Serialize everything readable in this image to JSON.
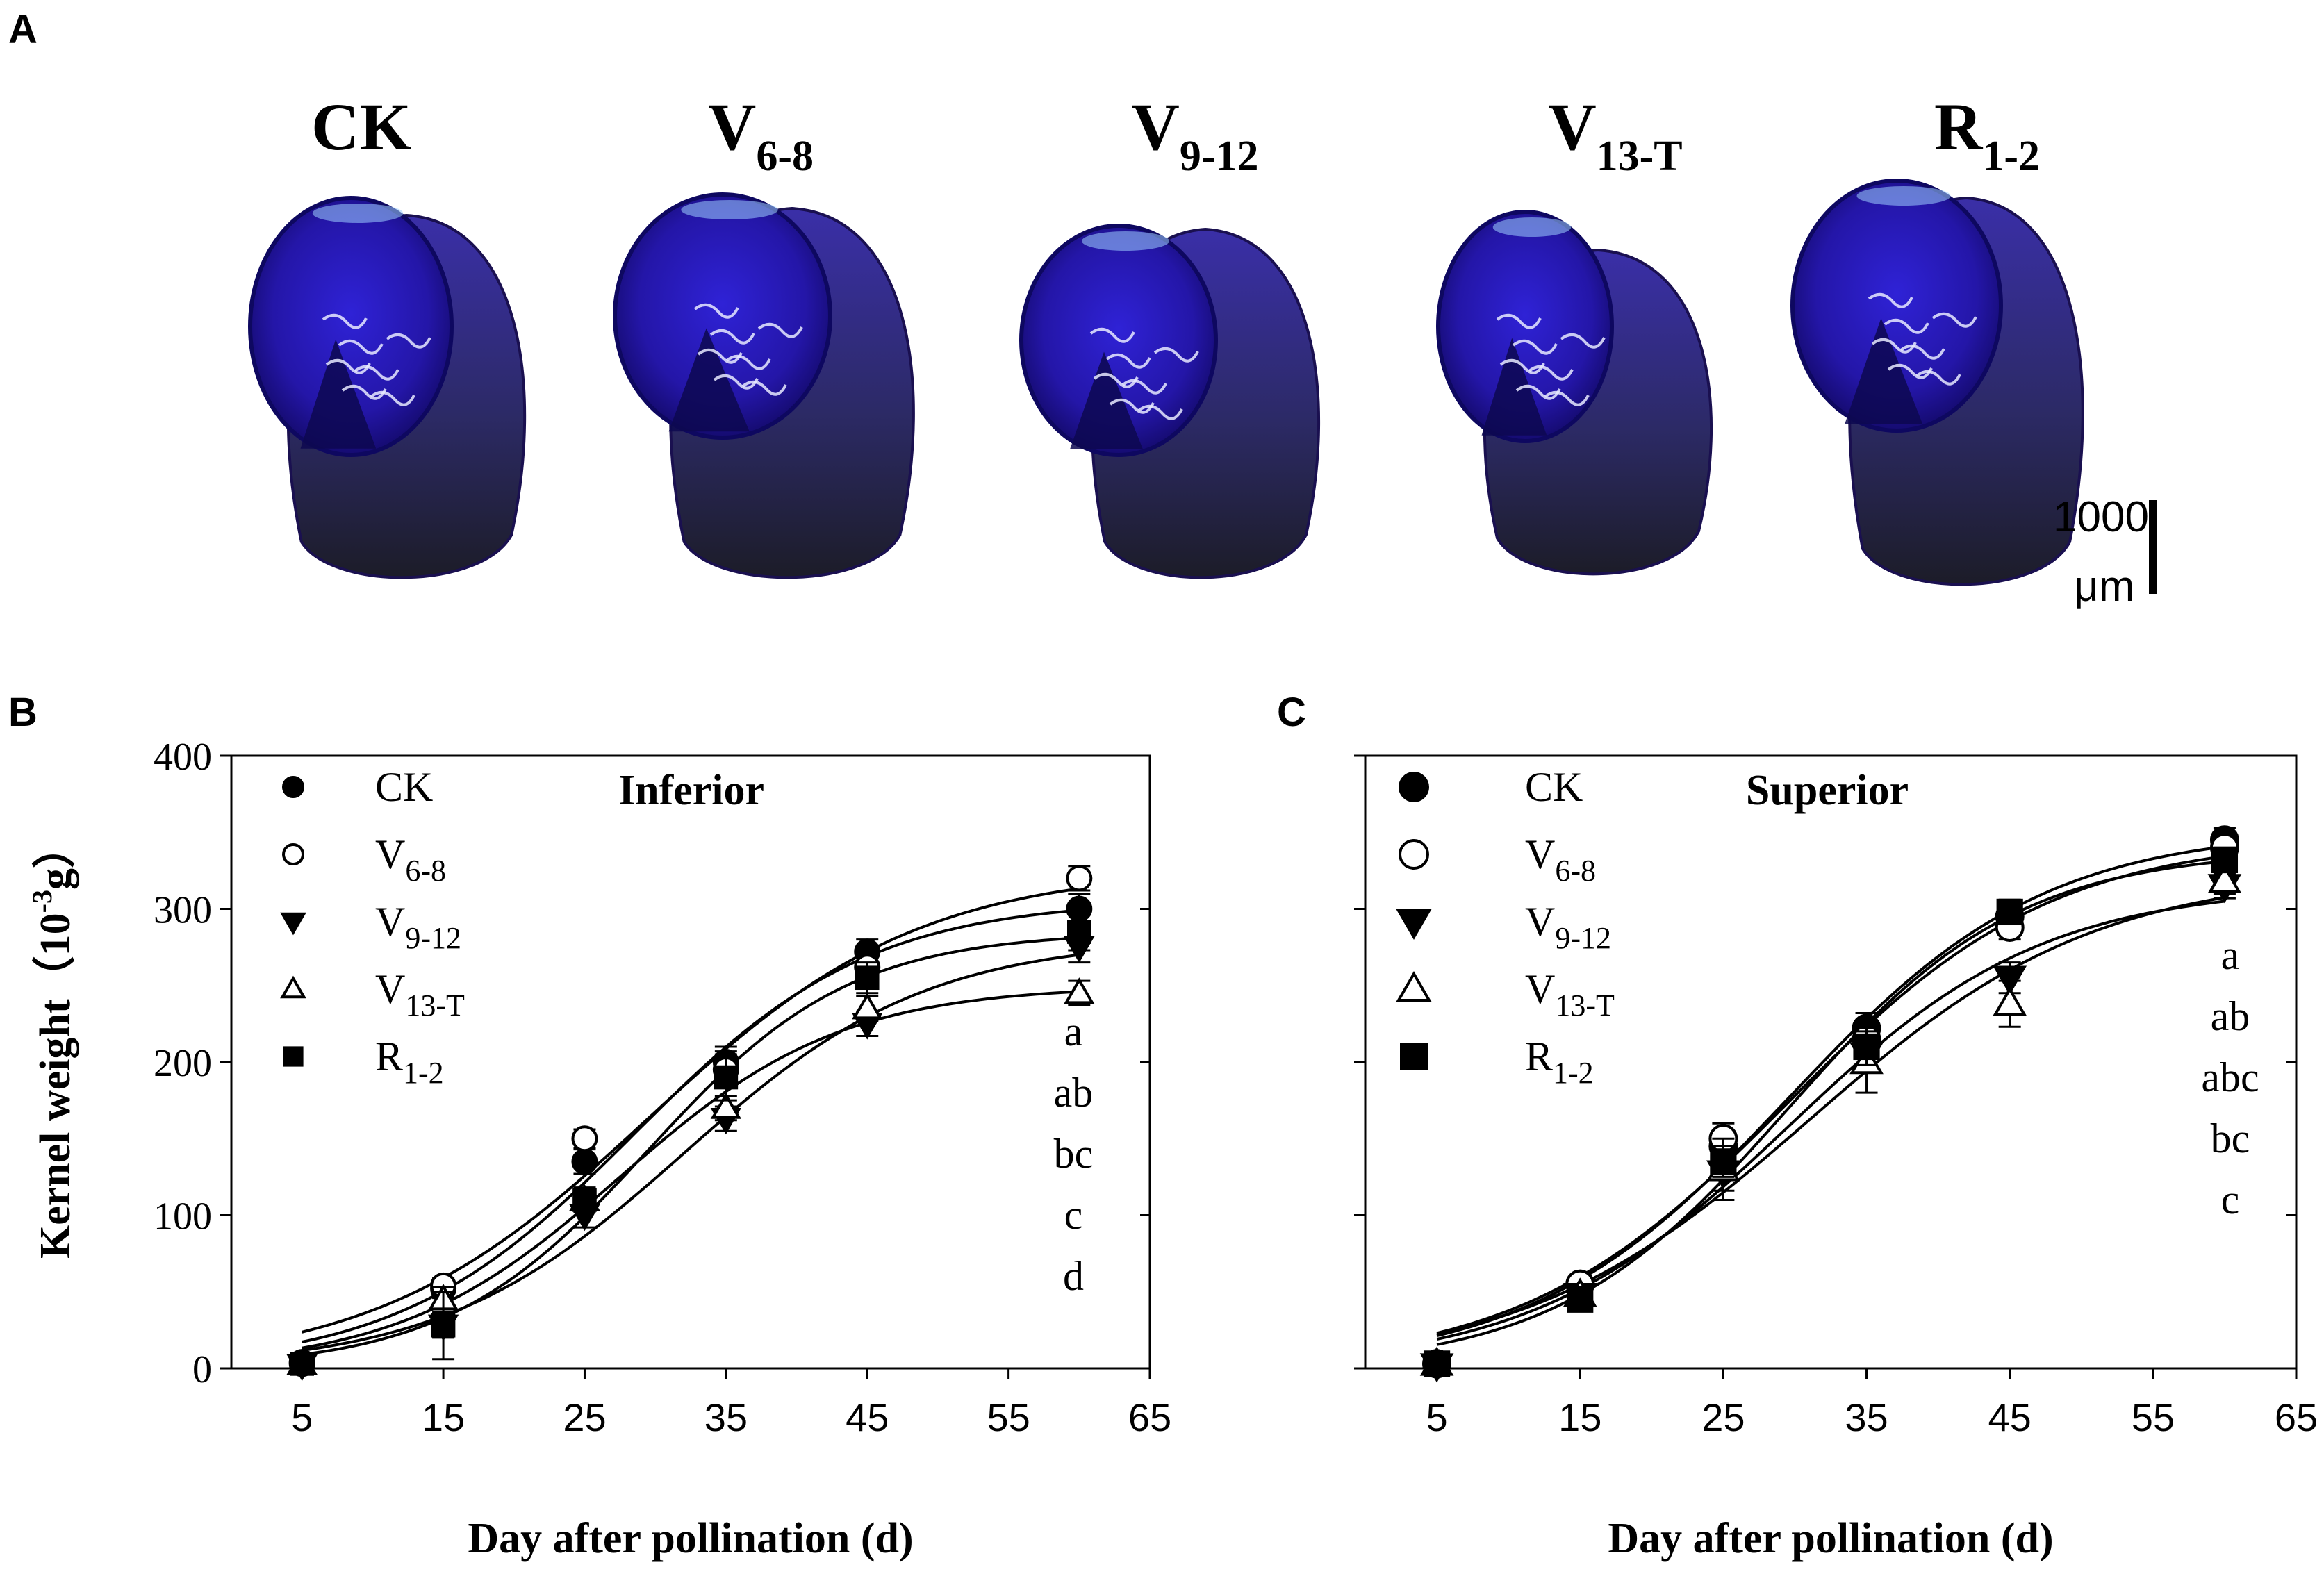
{
  "panel_letters": {
    "a": "A",
    "b": "B",
    "c": "C"
  },
  "photo_panel": {
    "treatments": [
      {
        "main": "CK",
        "sub": ""
      },
      {
        "main": "V",
        "sub": "6-8"
      },
      {
        "main": "V",
        "sub": "9-12"
      },
      {
        "main": "V",
        "sub": "13-T"
      },
      {
        "main": "R",
        "sub": "1-2"
      }
    ],
    "scale_bar": {
      "value": "1000",
      "unit": "μm"
    },
    "colors": {
      "stain": "#2a1ab8",
      "stain_dark": "#120a78",
      "tissue": "#2b2b3a",
      "highlight": "#e8eaff"
    }
  },
  "chart_data": [
    {
      "type": "line",
      "panel": "B",
      "title": "Inferior",
      "xlabel": "Day after pollination (d)",
      "ylabel": {
        "main": "Kernel weight（10",
        "exp": "-3",
        "unit": "g）"
      },
      "xlim": [
        0,
        65
      ],
      "ylim": [
        0,
        400
      ],
      "xticks": [
        5,
        15,
        25,
        35,
        45,
        55,
        65
      ],
      "yticks": [
        0,
        100,
        200,
        300,
        400
      ],
      "x": [
        5,
        15,
        25,
        35,
        45,
        60
      ],
      "series": [
        {
          "name": "CK",
          "sub": "",
          "marker": "filled-circle",
          "values": [
            4,
            52,
            135,
            200,
            272,
            300
          ],
          "errors": [
            2,
            6,
            8,
            10,
            8,
            10
          ]
        },
        {
          "name": "V",
          "sub": "6-8",
          "marker": "open-circle",
          "values": [
            3,
            54,
            150,
            195,
            262,
            320
          ],
          "errors": [
            2,
            5,
            6,
            12,
            10,
            8
          ]
        },
        {
          "name": "V",
          "sub": "9-12",
          "marker": "filled-triangle-down",
          "values": [
            2,
            28,
            100,
            163,
            225,
            275
          ],
          "errors": [
            2,
            8,
            8,
            8,
            8,
            10
          ]
        },
        {
          "name": "V",
          "sub": "13-T",
          "marker": "open-triangle-up",
          "values": [
            3,
            45,
            110,
            170,
            235,
            245
          ],
          "errors": [
            2,
            8,
            8,
            8,
            8,
            8
          ]
        },
        {
          "name": "R",
          "sub": "1-2",
          "marker": "filled-square",
          "values": [
            3,
            28,
            110,
            190,
            255,
            285
          ],
          "errors": [
            2,
            22,
            8,
            15,
            10,
            12
          ]
        }
      ],
      "significance_letters": [
        "a",
        "ab",
        "bc",
        "c",
        "d"
      ]
    },
    {
      "type": "line",
      "panel": "C",
      "title": "Superior",
      "xlabel": "Day after pollination (d)",
      "xlim": [
        0,
        65
      ],
      "ylim": [
        0,
        400
      ],
      "xticks": [
        5,
        15,
        25,
        35,
        45,
        55,
        65
      ],
      "yticks": [
        0,
        100,
        200,
        300,
        400
      ],
      "x": [
        5,
        15,
        25,
        35,
        45,
        60
      ],
      "series": [
        {
          "name": "CK",
          "sub": "",
          "marker": "filled-circle",
          "values": [
            3,
            55,
            145,
            222,
            295,
            345
          ],
          "errors": [
            2,
            5,
            10,
            10,
            8,
            8
          ]
        },
        {
          "name": "V",
          "sub": "6-8",
          "marker": "open-circle",
          "values": [
            3,
            55,
            150,
            215,
            288,
            340
          ],
          "errors": [
            2,
            5,
            10,
            12,
            8,
            8
          ]
        },
        {
          "name": "V",
          "sub": "9-12",
          "marker": "filled-triangle-down",
          "values": [
            2,
            48,
            128,
            205,
            255,
            315
          ],
          "errors": [
            2,
            5,
            12,
            10,
            10,
            8
          ]
        },
        {
          "name": "V",
          "sub": "13-T",
          "marker": "open-triangle-up",
          "values": [
            3,
            48,
            130,
            200,
            238,
            318
          ],
          "errors": [
            2,
            5,
            20,
            20,
            15,
            8
          ]
        },
        {
          "name": "R",
          "sub": "1-2",
          "marker": "filled-square",
          "values": [
            3,
            45,
            135,
            210,
            298,
            332
          ],
          "errors": [
            2,
            5,
            10,
            12,
            8,
            8
          ]
        }
      ],
      "significance_letters": [
        "a",
        "ab",
        "abc",
        "bc",
        "c"
      ]
    }
  ]
}
